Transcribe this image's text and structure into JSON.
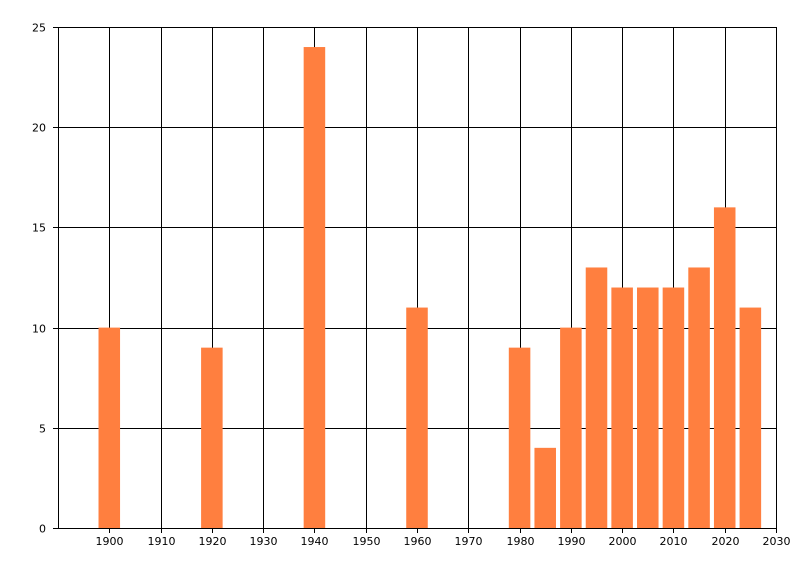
{
  "chart_data": {
    "type": "bar",
    "title": "",
    "xlabel": "",
    "ylabel": "",
    "x": [
      1900,
      1920,
      1940,
      1960,
      1980,
      1985,
      1990,
      1995,
      2000,
      2005,
      2010,
      2015,
      2020,
      2025
    ],
    "values": [
      10,
      9,
      24,
      11,
      9,
      4,
      10,
      13,
      12,
      12,
      12,
      13,
      16,
      11
    ],
    "xlim": [
      1890,
      2030
    ],
    "ylim": [
      0,
      25
    ],
    "xticks": [
      1900,
      1910,
      1920,
      1930,
      1940,
      1950,
      1960,
      1970,
      1980,
      1990,
      2000,
      2010,
      2020,
      2030
    ],
    "yticks": [
      0,
      5,
      10,
      15,
      20,
      25
    ],
    "grid": true,
    "legend": false,
    "bar_color": "#ff7f3f",
    "grid_color": "#000000"
  }
}
